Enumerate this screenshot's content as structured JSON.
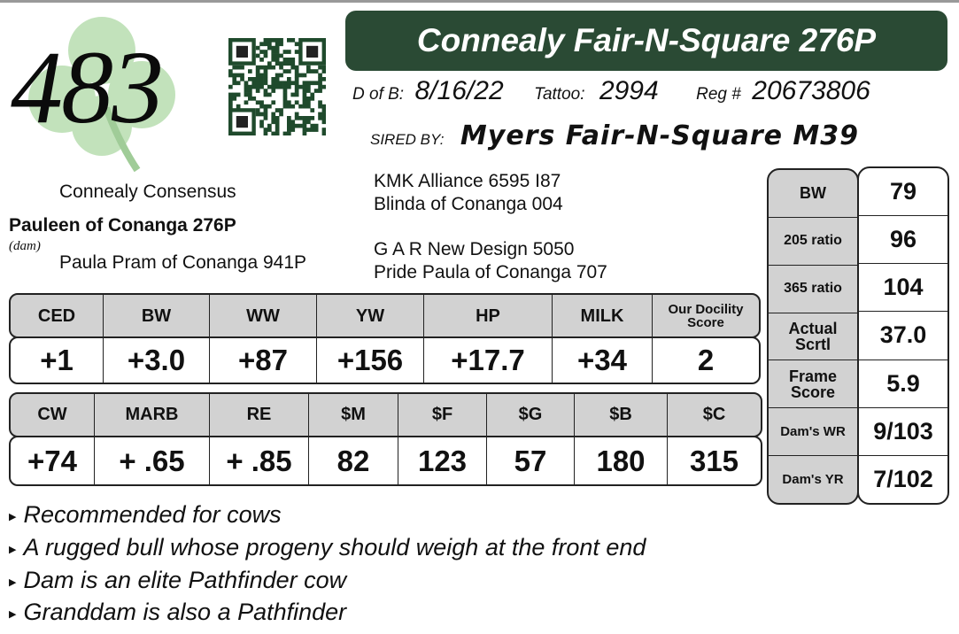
{
  "lot_number": "483",
  "title": "Connealy Fair-N-Square 276P",
  "dob_label": "D of B:",
  "dob": "8/16/22",
  "tattoo_label": "Tattoo:",
  "tattoo": "2994",
  "reg_label": "Reg #",
  "reg": "20673806",
  "sired_label": "SIRED BY:",
  "sire": "Myers Fair-N-Square M39",
  "pedigree": {
    "sire_sire": "KMK Alliance 6595 I87",
    "sire_dam": "Blinda of Conanga 004",
    "dam_sire_line": "Connealy Consensus",
    "dam": "Pauleen of Conanga 276P",
    "dam_label": "(dam)",
    "dam_dam": "Paula Pram of Conanga 941P",
    "ggs": "G A R New Design 5050",
    "ggd": "Pride Paula of Conanga 707"
  },
  "epd1": {
    "headers": [
      "CED",
      "BW",
      "WW",
      "YW",
      "HP",
      "MILK",
      "Our Docility Score"
    ],
    "values": [
      "+1",
      "+3.0",
      "+87",
      "+156",
      "+17.7",
      "+34",
      "2"
    ]
  },
  "epd2": {
    "headers": [
      "CW",
      "MARB",
      "RE",
      "$M",
      "$F",
      "$G",
      "$B",
      "$C"
    ],
    "values": [
      "+74",
      "+ .65",
      "+ .85",
      "82",
      "123",
      "57",
      "180",
      "315"
    ]
  },
  "performance": {
    "labels": [
      "BW",
      "205 ratio",
      "365 ratio",
      "Actual Scrtl",
      "Frame Score",
      "Dam's WR",
      "Dam's YR"
    ],
    "values": [
      "79",
      "96",
      "104",
      "37.0",
      "5.9",
      "9/103",
      "7/102"
    ]
  },
  "notes": [
    "Recommended for cows",
    "A rugged bull whose progeny should weigh at the front end",
    "Dam is an elite Pathfinder cow",
    "Granddam is also a Pathfinder"
  ],
  "colors": {
    "title_bg": "#2a4a34",
    "header_bg": "#d2d2d2",
    "clover": "#a8d5a0",
    "qr": "#1f4a2c"
  },
  "icons": [
    "clover-logo",
    "qr-code",
    "bullet-triangle-icon"
  ]
}
